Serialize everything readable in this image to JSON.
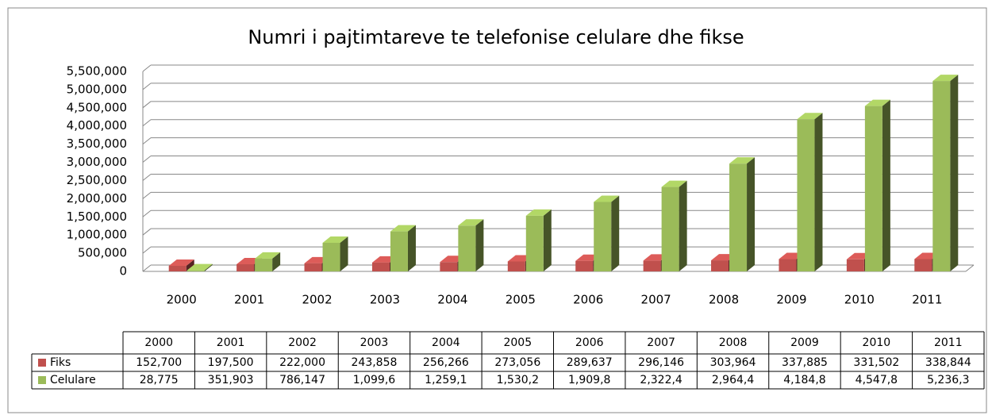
{
  "chart_data": {
    "type": "bar3d",
    "title": "Numri i pajtimtareve  te telefonise celulare dhe fikse",
    "categories": [
      "2000",
      "2001",
      "2002",
      "2003",
      "2004",
      "2005",
      "2006",
      "2007",
      "2008",
      "2009",
      "2010",
      "2011"
    ],
    "series": [
      {
        "name": "Fiks",
        "color": "#c0504d",
        "values": [
          152700,
          197500,
          222000,
          243858,
          256266,
          273056,
          289637,
          296146,
          303964,
          337885,
          331502,
          338844
        ],
        "value_labels": [
          "152,700",
          "197,500",
          "222,000",
          "243,858",
          "256,266",
          "273,056",
          "289,637",
          "296,146",
          "303,964",
          "337,885",
          "331,502",
          "338,844"
        ]
      },
      {
        "name": "Celulare",
        "color": "#9bbb59",
        "values": [
          28775,
          351903,
          786147,
          1099600,
          1259100,
          1530200,
          1909800,
          2322400,
          2964400,
          4184800,
          4547800,
          5236300
        ],
        "value_labels": [
          "28,775",
          "351,903",
          "786,147",
          "1,099,6",
          "1,259,1",
          "1,530,2",
          "1,909,8",
          "2,322,4",
          "2,964,4",
          "4,184,8",
          "4,547,8",
          "5,236,3"
        ]
      }
    ],
    "ylim": [
      0,
      5500000
    ],
    "yticks": [
      0,
      {
        "value": 500000,
        "label": "500,000"
      },
      {
        "value": 1000000,
        "label": "1,000,000"
      },
      {
        "value": 1500000,
        "label": "1,500,000"
      },
      {
        "value": 2000000,
        "label": "2,000,000"
      },
      {
        "value": 2500000,
        "label": "2,500,000"
      },
      {
        "value": 3000000,
        "label": "3,000,000"
      },
      {
        "value": 3500000,
        "label": "3,500,000"
      },
      {
        "value": 4000000,
        "label": "4,000,000"
      },
      {
        "value": 4500000,
        "label": "4,500,000"
      },
      {
        "value": 5000000,
        "label": "5,000,000"
      },
      {
        "value": 5500000,
        "label": "5,500,000"
      }
    ],
    "grid": true
  }
}
